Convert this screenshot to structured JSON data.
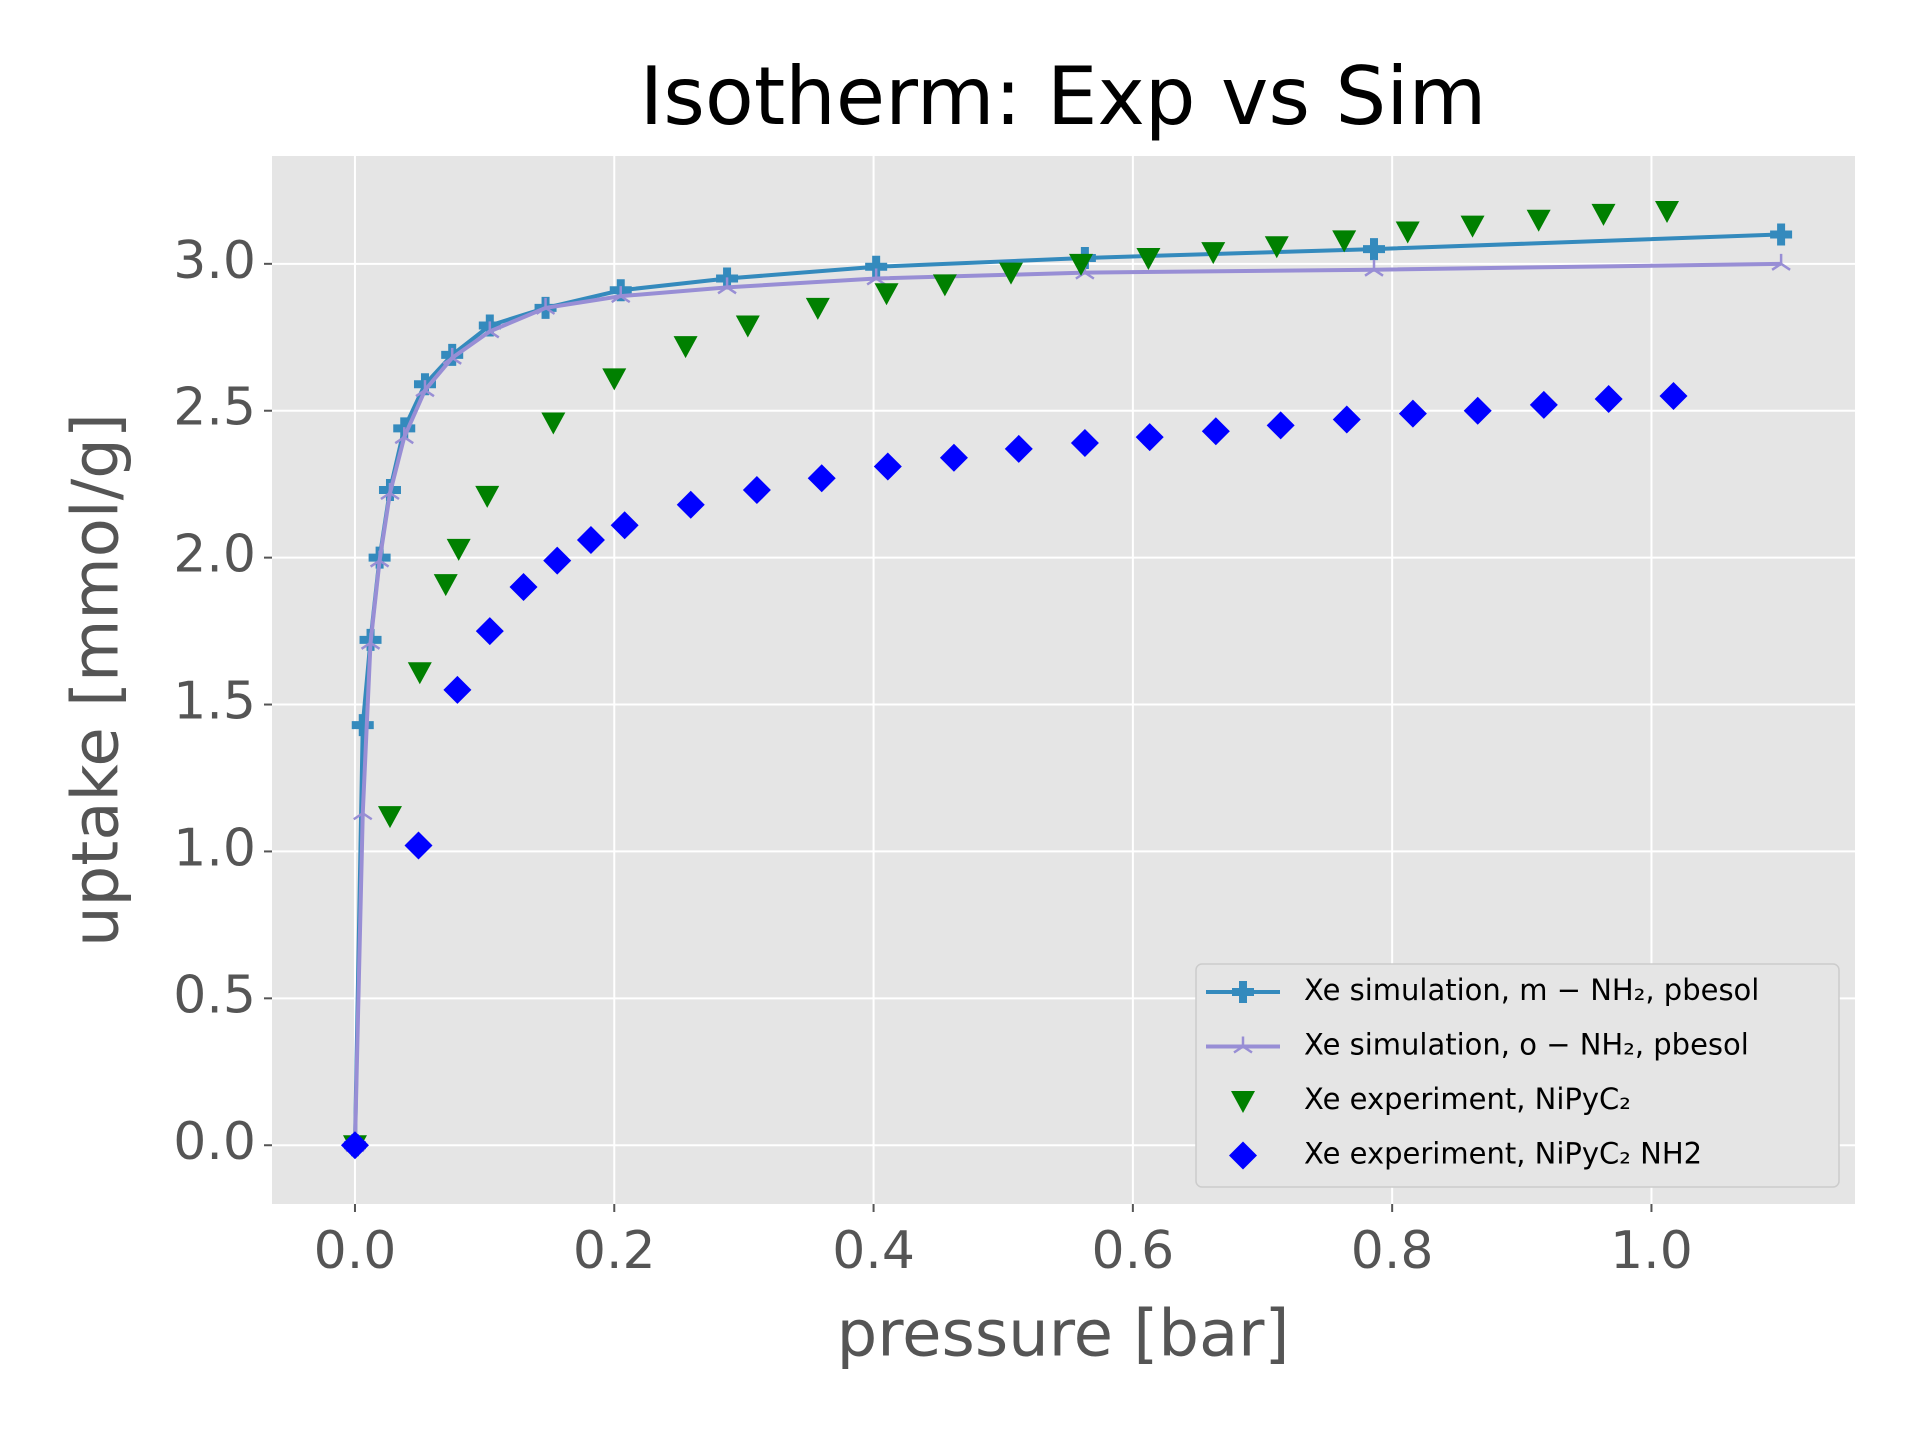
{
  "chart_data": {
    "type": "line",
    "title": "Isotherm: Exp vs Sim",
    "xlabel": "pressure [bar]",
    "ylabel": "uptake [mmol/g]",
    "xlim": [
      -0.064,
      1.157
    ],
    "ylim": [
      -0.2,
      3.367
    ],
    "xticks": [
      {
        "value": 0,
        "label": "0.0"
      },
      0.2,
      0.4,
      0.6,
      0.8,
      {
        "value": 1,
        "label": "1.0"
      }
    ],
    "yticks": [
      {
        "value": 0,
        "label": "0.0"
      },
      0.5,
      {
        "value": 1,
        "label": "1.0"
      },
      1.5,
      {
        "value": 2,
        "label": "2.0"
      },
      2.5,
      {
        "value": 3,
        "label": "3.0"
      }
    ],
    "grid": true,
    "legend": "lower right",
    "series": [
      {
        "name": "Xe simulation, m − NH₂, pbesol",
        "color": "#348ABD",
        "marker": "plus",
        "line": true,
        "x": [
          0,
          0.006,
          0.012,
          0.019,
          0.027,
          0.038,
          0.054,
          0.075,
          0.104,
          0.147,
          0.205,
          0.287,
          0.402,
          0.563,
          0.786,
          1.1
        ],
        "values": [
          0,
          1.43,
          1.72,
          2.0,
          2.23,
          2.44,
          2.59,
          2.69,
          2.79,
          2.85,
          2.91,
          2.95,
          2.99,
          3.02,
          3.05,
          3.1
        ]
      },
      {
        "name": "Xe simulation, o − NH₂, pbesol",
        "color": "#988ED5",
        "marker": "tri",
        "line": true,
        "x": [
          0,
          0.006,
          0.012,
          0.019,
          0.027,
          0.038,
          0.054,
          0.075,
          0.104,
          0.147,
          0.205,
          0.287,
          0.402,
          0.563,
          0.786,
          1.1
        ],
        "values": [
          0,
          1.13,
          1.71,
          1.99,
          2.22,
          2.41,
          2.57,
          2.68,
          2.77,
          2.85,
          2.89,
          2.92,
          2.95,
          2.97,
          2.98,
          3.0
        ]
      },
      {
        "name": "Xe experiment, NiPyC₂",
        "color": "#008000",
        "marker": "triangle-down",
        "line": false,
        "x": [
          0,
          0.027,
          0.05,
          0.07,
          0.08,
          0.102,
          0.153,
          0.2,
          0.255,
          0.303,
          0.357,
          0.41,
          0.455,
          0.506,
          0.56,
          0.612,
          0.662,
          0.711,
          0.763,
          0.812,
          0.862,
          0.913,
          0.963,
          1.012
        ],
        "values": [
          0,
          1.12,
          1.61,
          1.91,
          2.03,
          2.21,
          2.46,
          2.61,
          2.72,
          2.79,
          2.85,
          2.9,
          2.93,
          2.97,
          3.0,
          3.02,
          3.04,
          3.06,
          3.08,
          3.11,
          3.13,
          3.15,
          3.17,
          3.18
        ]
      },
      {
        "name": "Xe experiment, NiPyC₂ NH2",
        "color": "#0000FF",
        "marker": "diamond",
        "line": false,
        "x": [
          0,
          0.049,
          0.079,
          0.104,
          0.13,
          0.156,
          0.182,
          0.208,
          0.259,
          0.31,
          0.36,
          0.411,
          0.462,
          0.512,
          0.563,
          0.613,
          0.664,
          0.714,
          0.765,
          0.816,
          0.866,
          0.917,
          0.967,
          1.017
        ],
        "values": [
          0,
          1.02,
          1.55,
          1.75,
          1.9,
          1.99,
          2.06,
          2.11,
          2.18,
          2.23,
          2.27,
          2.31,
          2.34,
          2.37,
          2.39,
          2.41,
          2.43,
          2.45,
          2.47,
          2.49,
          2.5,
          2.52,
          2.54,
          2.55
        ]
      }
    ]
  }
}
